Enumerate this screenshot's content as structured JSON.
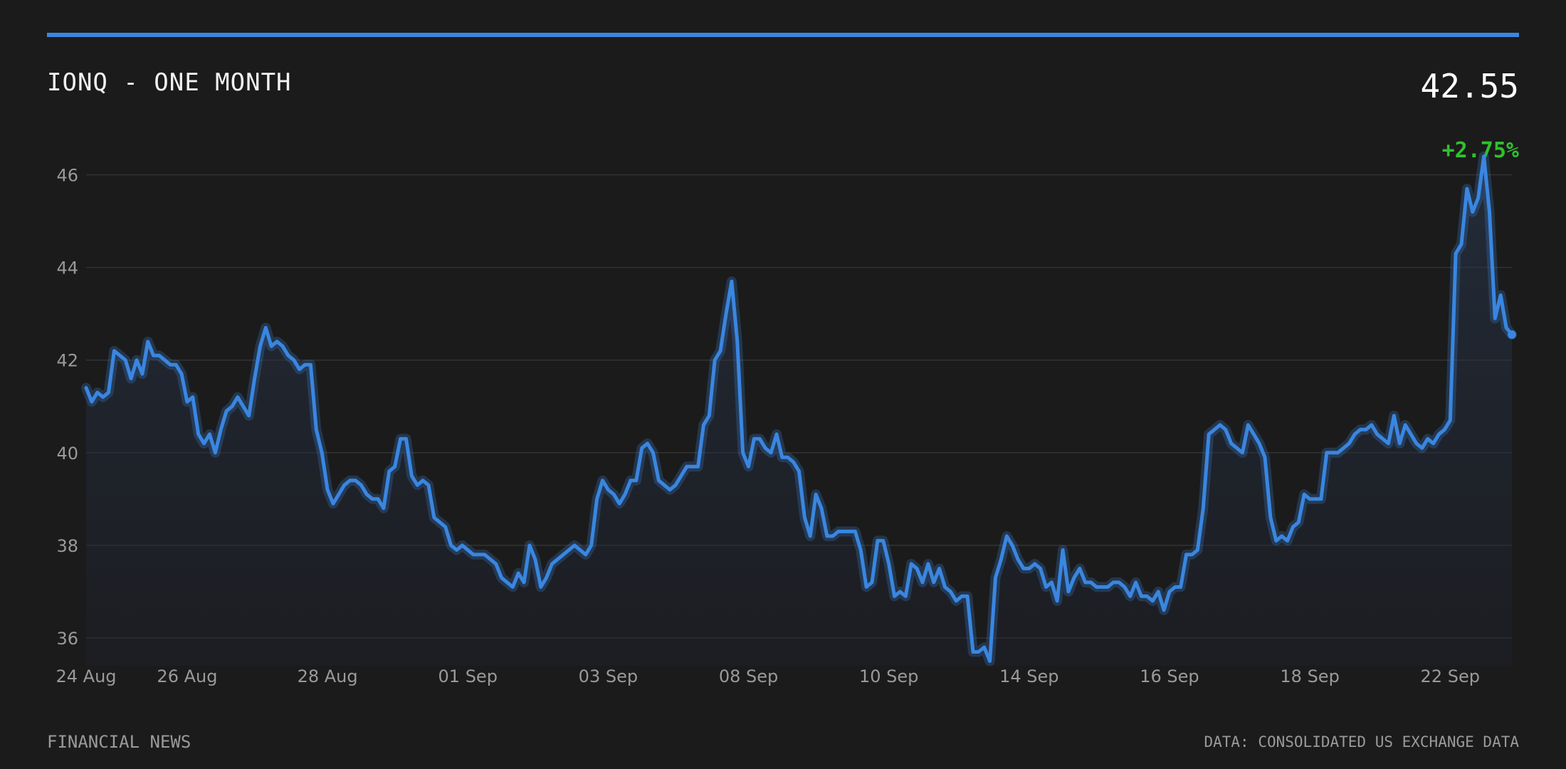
{
  "header": {
    "title": "IONQ - ONE MONTH",
    "price": "42.55",
    "change": "+2.75%"
  },
  "footer": {
    "source_left": "FINANCIAL NEWS",
    "source_right": "DATA: CONSOLIDATED US EXCHANGE DATA"
  },
  "colors": {
    "line": "#3a86e0",
    "accent": "#3a86e0",
    "positive": "#2ec12e",
    "background": "#1b1b1b",
    "grid": "#333333"
  },
  "chart_data": {
    "type": "area",
    "title": "IONQ - ONE MONTH",
    "xlabel": "",
    "ylabel": "",
    "ylim": [
      35.4,
      46.7
    ],
    "yticks": [
      36,
      38,
      40,
      42,
      44,
      46
    ],
    "xticks": [
      {
        "label": "24 Aug",
        "index": 0
      },
      {
        "label": "26 Aug",
        "index": 18
      },
      {
        "label": "28 Aug",
        "index": 43
      },
      {
        "label": "01 Sep",
        "index": 68
      },
      {
        "label": "03 Sep",
        "index": 93
      },
      {
        "label": "08 Sep",
        "index": 118
      },
      {
        "label": "10 Sep",
        "index": 143
      },
      {
        "label": "14 Sep",
        "index": 168
      },
      {
        "label": "16 Sep",
        "index": 193
      },
      {
        "label": "18 Sep",
        "index": 218
      },
      {
        "label": "22 Sep",
        "index": 243
      }
    ],
    "grid": true,
    "legend": "none",
    "series": [
      {
        "values": [
          41.4,
          41.1,
          41.3,
          41.2,
          41.3,
          42.2,
          42.1,
          42.0,
          41.6,
          42.0,
          41.7,
          42.4,
          42.1,
          42.1,
          42.0,
          41.9,
          41.9,
          41.7,
          41.1,
          41.2,
          40.4,
          40.2,
          40.4,
          40.0,
          40.5,
          40.9,
          41.0,
          41.2,
          41.0,
          40.8,
          41.6,
          42.3,
          42.7,
          42.3,
          42.4,
          42.3,
          42.1,
          42.0,
          41.8,
          41.9,
          41.9,
          40.5,
          40.0,
          39.2,
          38.9,
          39.1,
          39.3,
          39.4,
          39.4,
          39.3,
          39.1,
          39.0,
          39.0,
          38.8,
          39.6,
          39.7,
          40.3,
          40.3,
          39.5,
          39.3,
          39.4,
          39.3,
          38.6,
          38.5,
          38.4,
          38.0,
          37.9,
          38.0,
          37.9,
          37.8,
          37.8,
          37.8,
          37.7,
          37.6,
          37.3,
          37.2,
          37.1,
          37.4,
          37.2,
          38.0,
          37.7,
          37.1,
          37.3,
          37.6,
          37.7,
          37.8,
          37.9,
          38.0,
          37.9,
          37.8,
          38.0,
          39.0,
          39.4,
          39.2,
          39.1,
          38.9,
          39.1,
          39.4,
          39.4,
          40.1,
          40.2,
          40.0,
          39.4,
          39.3,
          39.2,
          39.3,
          39.5,
          39.7,
          39.7,
          39.7,
          40.6,
          40.8,
          42.0,
          42.2,
          43.0,
          43.7,
          42.4,
          40.0,
          39.7,
          40.3,
          40.3,
          40.1,
          40.0,
          40.4,
          39.9,
          39.9,
          39.8,
          39.6,
          38.6,
          38.2,
          39.1,
          38.8,
          38.2,
          38.2,
          38.3,
          38.3,
          38.3,
          38.3,
          37.9,
          37.1,
          37.2,
          38.1,
          38.1,
          37.6,
          36.9,
          37.0,
          36.9,
          37.6,
          37.5,
          37.2,
          37.6,
          37.2,
          37.5,
          37.1,
          37.0,
          36.8,
          36.9,
          36.9,
          35.7,
          35.7,
          35.8,
          35.5,
          37.3,
          37.7,
          38.2,
          38.0,
          37.7,
          37.5,
          37.5,
          37.6,
          37.5,
          37.1,
          37.2,
          36.8,
          37.9,
          37.0,
          37.3,
          37.5,
          37.2,
          37.2,
          37.1,
          37.1,
          37.1,
          37.2,
          37.2,
          37.1,
          36.9,
          37.2,
          36.9,
          36.9,
          36.8,
          37.0,
          36.6,
          37.0,
          37.1,
          37.1,
          37.8,
          37.8,
          37.9,
          38.8,
          40.4,
          40.5,
          40.6,
          40.5,
          40.2,
          40.1,
          40.0,
          40.6,
          40.4,
          40.2,
          39.9,
          38.6,
          38.1,
          38.2,
          38.1,
          38.4,
          38.5,
          39.1,
          39.0,
          39.0,
          39.0,
          40.0,
          40.0,
          40.0,
          40.1,
          40.2,
          40.4,
          40.5,
          40.5,
          40.6,
          40.4,
          40.3,
          40.2,
          40.8,
          40.2,
          40.6,
          40.4,
          40.2,
          40.1,
          40.3,
          40.2,
          40.4,
          40.5,
          40.7,
          44.3,
          44.5,
          45.7,
          45.2,
          45.5,
          46.4,
          45.2,
          42.9,
          43.4,
          42.7,
          42.55
        ]
      }
    ]
  }
}
